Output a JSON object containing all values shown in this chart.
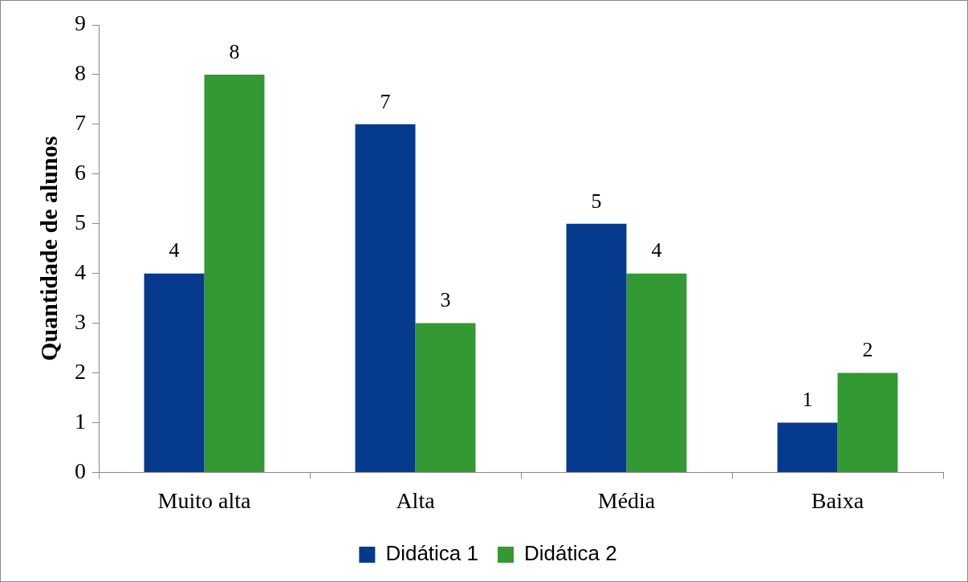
{
  "chart_data": {
    "type": "bar",
    "ylabel": "Quantidade de alunos",
    "categories": [
      "Muito alta",
      "Alta",
      "Média",
      "Baixa"
    ],
    "series": [
      {
        "name": "Didática 1",
        "color": "#063a8c",
        "values": [
          4,
          7,
          5,
          1
        ]
      },
      {
        "name": "Didática 2",
        "color": "#339933",
        "values": [
          8,
          3,
          4,
          2
        ]
      }
    ],
    "ylim": [
      0,
      9
    ],
    "yticks": [
      0,
      1,
      2,
      3,
      4,
      5,
      6,
      7,
      8,
      9
    ],
    "grid": false,
    "legend": "bottom",
    "data_labels": true
  }
}
